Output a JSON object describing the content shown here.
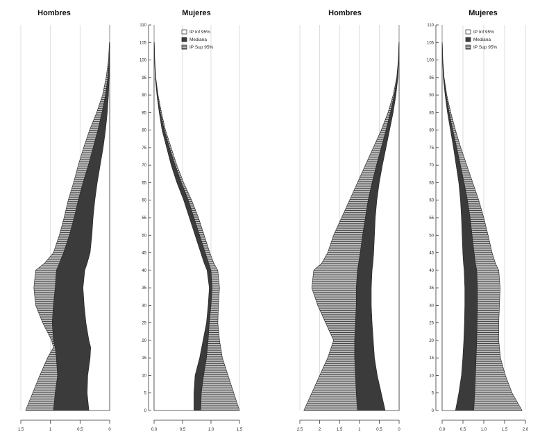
{
  "chart_data": [
    {
      "type": "area",
      "panels": [
        {
          "title": "Hombres",
          "side": "left",
          "x_ticks": [
            "1.5",
            "1",
            "0.5",
            "0"
          ]
        },
        {
          "title": "Mujeres",
          "side": "right",
          "x_ticks": [
            "0.0",
            "0.5",
            "1.0",
            "1.5"
          ]
        }
      ],
      "xlim": [
        0,
        1.5
      ],
      "ylim": [
        0,
        110
      ],
      "age_ticks": [
        "0",
        "5",
        "10",
        "15",
        "20",
        "25",
        "30",
        "35",
        "40",
        "45",
        "50",
        "55",
        "60",
        "65",
        "70",
        "75",
        "80",
        "85",
        "90",
        "95",
        "100",
        "105",
        "110"
      ],
      "legend": {
        "position": "top-right",
        "entries": [
          "IP Inf 95%",
          "Mediana",
          "IP Sup 95%"
        ]
      },
      "grid": true,
      "series": [
        {
          "name": "IP Inf 95%",
          "sex": "Hombres",
          "age": [
            0,
            5,
            10,
            15,
            18,
            20,
            25,
            30,
            35,
            40,
            42,
            45,
            50,
            55,
            60,
            65,
            70,
            75,
            80,
            85,
            90,
            95,
            100,
            105
          ],
          "values": [
            0.35,
            0.38,
            0.37,
            0.33,
            0.32,
            0.35,
            0.4,
            0.43,
            0.45,
            0.42,
            0.38,
            0.33,
            0.3,
            0.28,
            0.25,
            0.21,
            0.16,
            0.11,
            0.07,
            0.04,
            0.02,
            0.01,
            0.004,
            0.001
          ]
        },
        {
          "name": "Mediana",
          "sex": "Hombres",
          "age": [
            0,
            5,
            10,
            15,
            18,
            20,
            25,
            30,
            35,
            40,
            42,
            45,
            50,
            55,
            60,
            65,
            70,
            75,
            80,
            85,
            90,
            95,
            100,
            105
          ],
          "values": [
            0.95,
            0.92,
            0.88,
            0.9,
            0.92,
            0.95,
            0.97,
            0.95,
            0.92,
            0.9,
            0.85,
            0.78,
            0.68,
            0.6,
            0.53,
            0.45,
            0.36,
            0.28,
            0.2,
            0.13,
            0.07,
            0.03,
            0.01,
            0.003
          ]
        },
        {
          "name": "IP Sup 95%",
          "sex": "Hombres",
          "age": [
            0,
            5,
            10,
            15,
            18,
            20,
            25,
            30,
            35,
            40,
            42,
            45,
            50,
            55,
            60,
            65,
            70,
            75,
            80,
            85,
            90,
            95,
            100,
            105
          ],
          "values": [
            1.42,
            1.3,
            1.18,
            1.05,
            0.95,
            0.98,
            1.13,
            1.25,
            1.28,
            1.25,
            1.1,
            0.95,
            0.85,
            0.77,
            0.7,
            0.61,
            0.53,
            0.44,
            0.34,
            0.22,
            0.12,
            0.06,
            0.02,
            0.005
          ]
        },
        {
          "name": "IP Inf 95%",
          "sex": "Mujeres",
          "age": [
            0,
            5,
            10,
            15,
            20,
            25,
            30,
            35,
            40,
            42,
            45,
            50,
            55,
            60,
            65,
            70,
            75,
            80,
            85,
            90,
            95,
            100,
            105
          ],
          "values": [
            0.7,
            0.7,
            0.72,
            0.8,
            0.86,
            0.92,
            0.95,
            0.97,
            0.93,
            0.88,
            0.82,
            0.72,
            0.62,
            0.52,
            0.4,
            0.3,
            0.22,
            0.14,
            0.09,
            0.05,
            0.02,
            0.008,
            0.002
          ]
        },
        {
          "name": "Mediana",
          "sex": "Mujeres",
          "age": [
            0,
            5,
            10,
            15,
            20,
            25,
            30,
            35,
            40,
            42,
            45,
            50,
            55,
            60,
            65,
            70,
            75,
            80,
            85,
            90,
            95,
            100,
            105
          ],
          "values": [
            0.82,
            0.83,
            0.87,
            0.92,
            0.95,
            0.97,
            1.0,
            1.02,
            1.0,
            0.96,
            0.9,
            0.8,
            0.7,
            0.6,
            0.48,
            0.37,
            0.27,
            0.18,
            0.11,
            0.06,
            0.025,
            0.01,
            0.003
          ]
        },
        {
          "name": "IP Sup 95%",
          "sex": "Mujeres",
          "age": [
            0,
            5,
            10,
            15,
            20,
            25,
            30,
            35,
            40,
            42,
            45,
            50,
            55,
            60,
            65,
            70,
            75,
            80,
            85,
            90,
            95,
            100,
            105
          ],
          "values": [
            1.5,
            1.4,
            1.3,
            1.2,
            1.15,
            1.12,
            1.13,
            1.15,
            1.12,
            1.05,
            0.98,
            0.88,
            0.78,
            0.66,
            0.52,
            0.4,
            0.3,
            0.2,
            0.13,
            0.07,
            0.03,
            0.012,
            0.004
          ]
        }
      ]
    },
    {
      "type": "area",
      "panels": [
        {
          "title": "Hombres",
          "side": "left",
          "x_ticks": [
            "2.5",
            "2",
            "1.5",
            "1",
            "0.5",
            "0"
          ]
        },
        {
          "title": "Mujeres",
          "side": "right",
          "x_ticks": [
            "0.0",
            "0.5",
            "1.0",
            "1.5",
            "2.0"
          ]
        }
      ],
      "xlim": [
        0,
        2.5
      ],
      "ylim": [
        0,
        110
      ],
      "age_ticks": [
        "0",
        "5",
        "10",
        "15",
        "20",
        "25",
        "30",
        "35",
        "40",
        "45",
        "50",
        "55",
        "60",
        "65",
        "70",
        "75",
        "80",
        "85",
        "90",
        "95",
        "100",
        "105",
        "110"
      ],
      "legend": {
        "position": "top-right",
        "entries": [
          "IP Inf 95%",
          "Mediana",
          "IP Sup 95%"
        ]
      },
      "grid": true,
      "series": [
        {
          "name": "IP Inf 95%",
          "sex": "Hombres",
          "age": [
            0,
            5,
            10,
            15,
            20,
            25,
            30,
            35,
            40,
            42,
            45,
            50,
            55,
            60,
            65,
            70,
            75,
            80,
            85,
            90,
            95,
            100,
            105
          ],
          "values": [
            0.35,
            0.45,
            0.55,
            0.62,
            0.65,
            0.68,
            0.7,
            0.7,
            0.68,
            0.66,
            0.64,
            0.62,
            0.6,
            0.56,
            0.5,
            0.42,
            0.33,
            0.24,
            0.15,
            0.08,
            0.03,
            0.01,
            0.002
          ]
        },
        {
          "name": "Mediana",
          "sex": "Hombres",
          "age": [
            0,
            5,
            10,
            15,
            20,
            25,
            30,
            35,
            40,
            42,
            45,
            50,
            55,
            60,
            65,
            70,
            75,
            80,
            85,
            90,
            95,
            100,
            105
          ],
          "values": [
            1.05,
            1.08,
            1.1,
            1.12,
            1.12,
            1.1,
            1.08,
            1.08,
            1.05,
            1.02,
            0.98,
            0.92,
            0.85,
            0.78,
            0.68,
            0.57,
            0.45,
            0.33,
            0.22,
            0.12,
            0.05,
            0.015,
            0.004
          ]
        },
        {
          "name": "IP Sup 95%",
          "sex": "Hombres",
          "age": [
            0,
            5,
            10,
            15,
            20,
            25,
            30,
            35,
            40,
            42,
            45,
            50,
            55,
            60,
            65,
            70,
            75,
            80,
            85,
            90,
            95,
            100,
            105
          ],
          "values": [
            2.4,
            2.2,
            2.0,
            1.8,
            1.65,
            1.85,
            2.05,
            2.2,
            2.15,
            1.95,
            1.8,
            1.65,
            1.45,
            1.25,
            1.05,
            0.85,
            0.65,
            0.45,
            0.28,
            0.15,
            0.06,
            0.02,
            0.005
          ]
        },
        {
          "name": "IP Inf 95%",
          "sex": "Mujeres",
          "age": [
            0,
            5,
            10,
            15,
            20,
            25,
            30,
            35,
            40,
            42,
            45,
            50,
            55,
            60,
            65,
            70,
            75,
            80,
            85,
            90,
            95,
            100,
            105
          ],
          "values": [
            0.4,
            0.5,
            0.58,
            0.62,
            0.65,
            0.67,
            0.68,
            0.68,
            0.66,
            0.64,
            0.62,
            0.6,
            0.58,
            0.55,
            0.5,
            0.42,
            0.34,
            0.25,
            0.16,
            0.09,
            0.035,
            0.012,
            0.003
          ]
        },
        {
          "name": "Mediana",
          "sex": "Mujeres",
          "age": [
            0,
            5,
            10,
            15,
            20,
            25,
            30,
            35,
            40,
            42,
            45,
            50,
            55,
            60,
            65,
            70,
            75,
            80,
            85,
            90,
            95,
            100,
            105
          ],
          "values": [
            0.95,
            0.98,
            1.0,
            1.02,
            1.04,
            1.05,
            1.06,
            1.06,
            1.04,
            1.0,
            0.96,
            0.9,
            0.84,
            0.76,
            0.66,
            0.55,
            0.44,
            0.32,
            0.21,
            0.12,
            0.05,
            0.018,
            0.005
          ]
        },
        {
          "name": "IP Sup 95%",
          "sex": "Mujeres",
          "age": [
            0,
            5,
            10,
            15,
            20,
            25,
            30,
            35,
            40,
            42,
            45,
            50,
            55,
            60,
            65,
            70,
            75,
            80,
            85,
            90,
            95,
            100,
            105
          ],
          "values": [
            2.4,
            2.1,
            1.9,
            1.75,
            1.7,
            1.7,
            1.72,
            1.74,
            1.7,
            1.6,
            1.5,
            1.38,
            1.25,
            1.1,
            0.92,
            0.74,
            0.56,
            0.4,
            0.26,
            0.14,
            0.06,
            0.02,
            0.005
          ]
        }
      ]
    }
  ]
}
